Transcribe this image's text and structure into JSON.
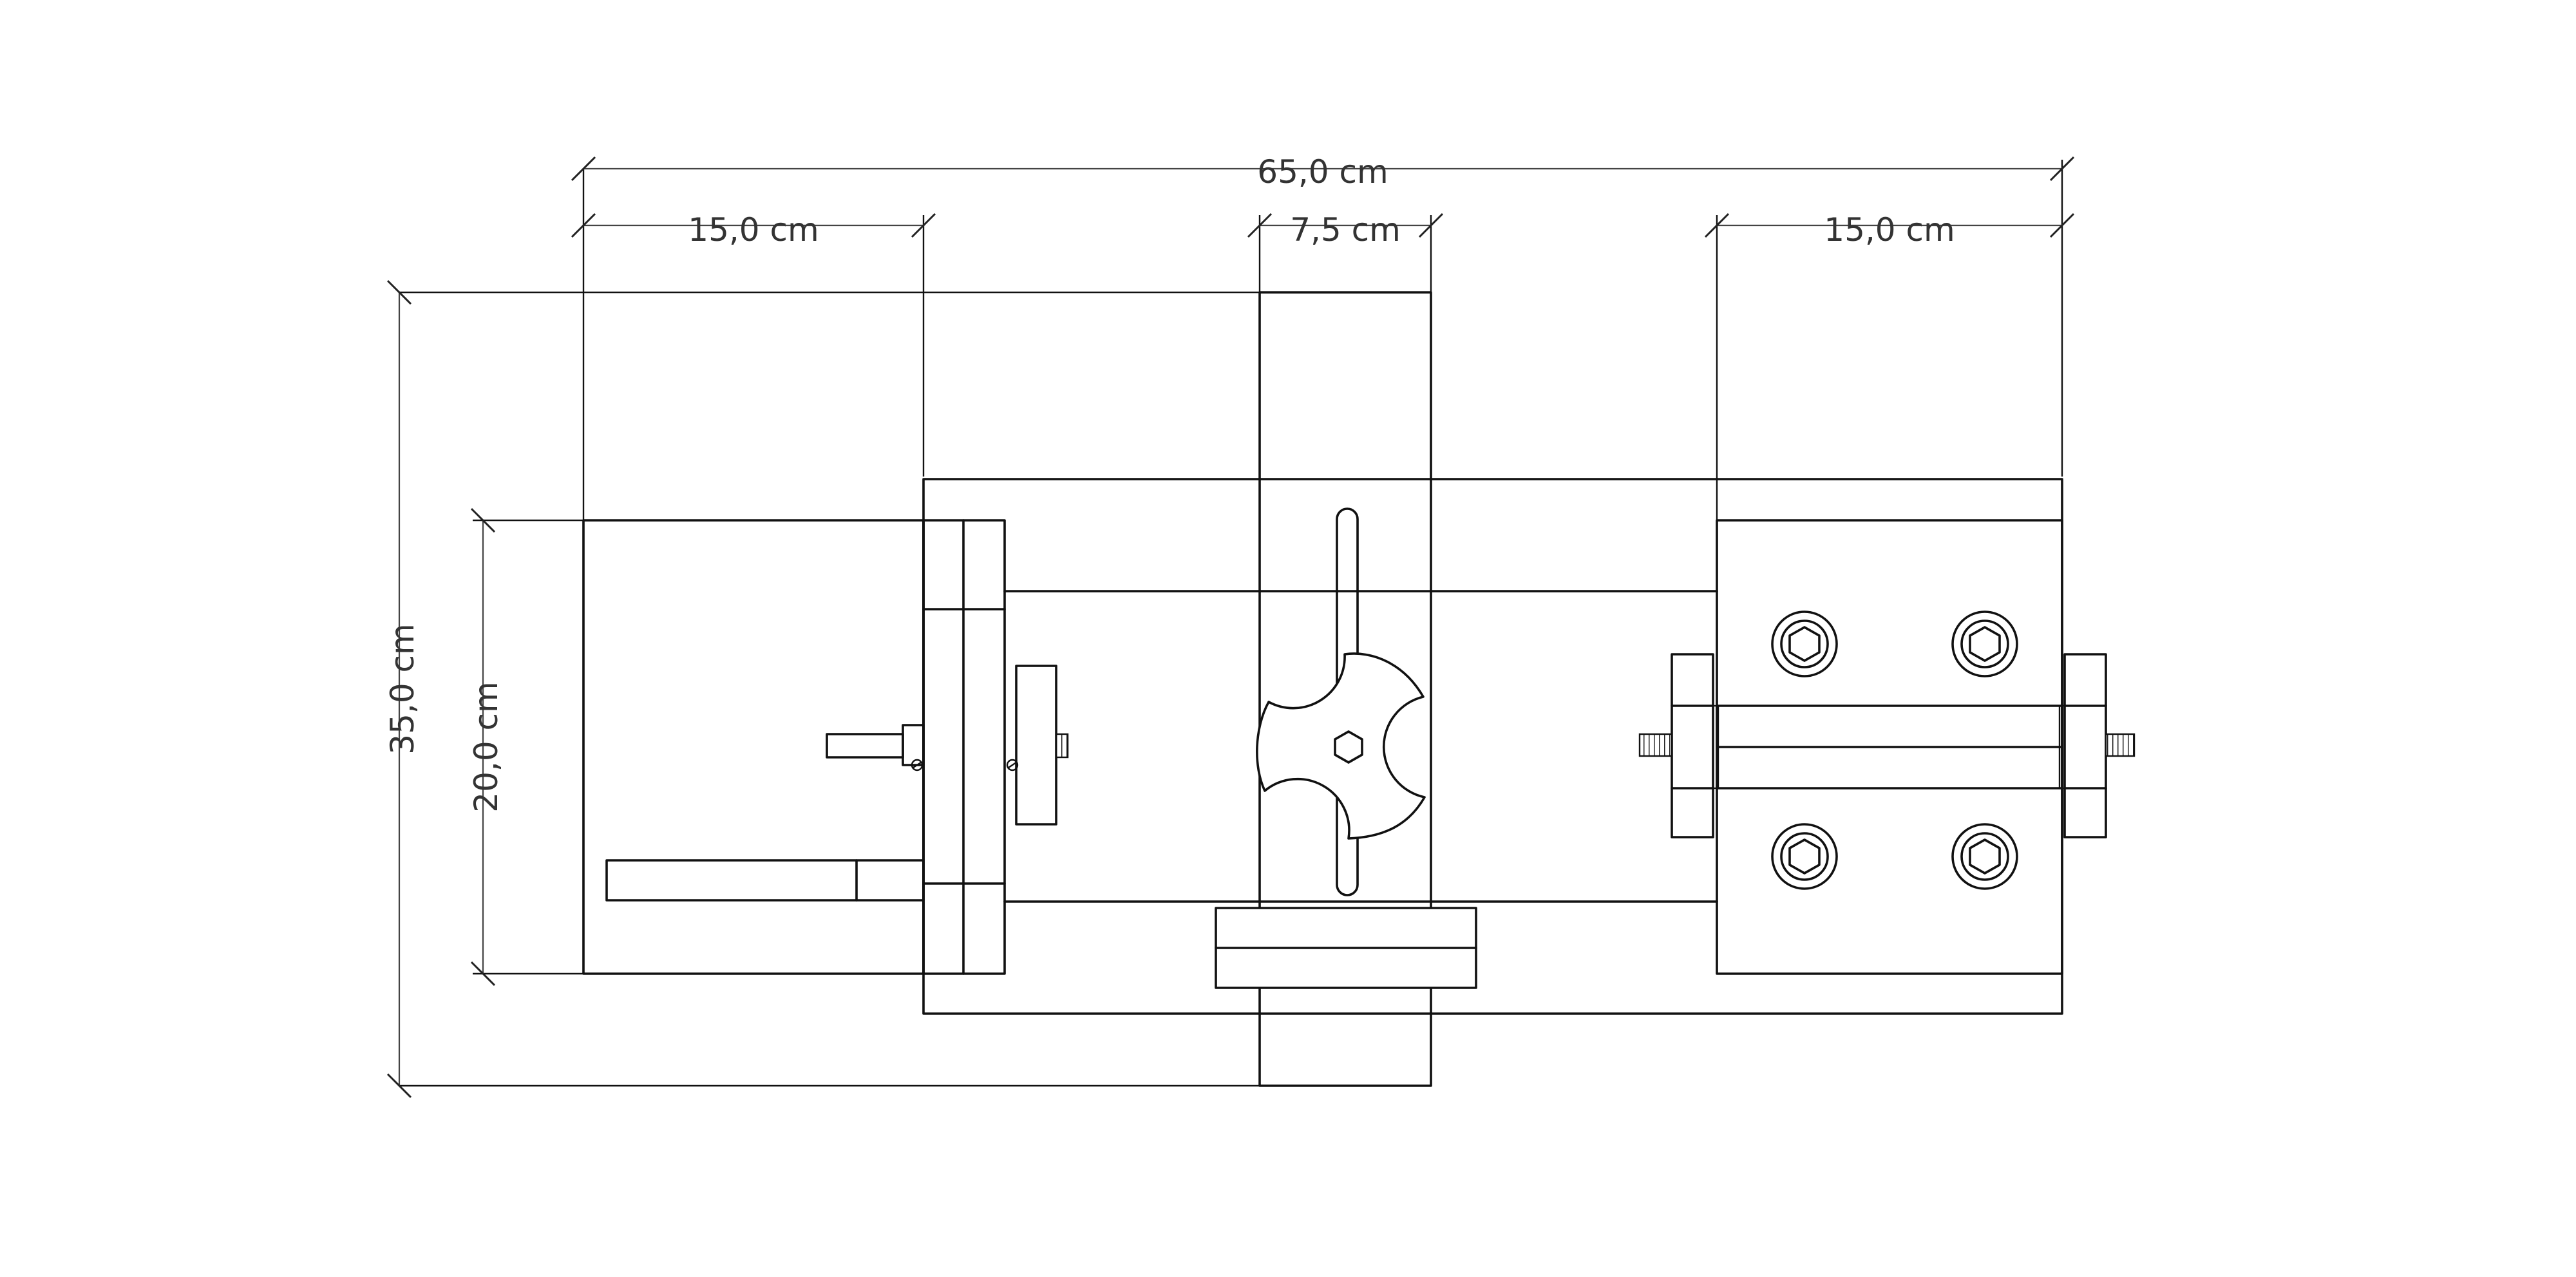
{
  "dimensions": {
    "total_width": "65,0 cm",
    "left_section": "15,0 cm",
    "center_section": "7,5 cm",
    "right_section": "15,0 cm",
    "total_height": "35,0 cm",
    "inner_height": "20,0 cm"
  },
  "colors": {
    "line": "#111111",
    "dimension_line": "#444444",
    "background": "#ffffff"
  }
}
